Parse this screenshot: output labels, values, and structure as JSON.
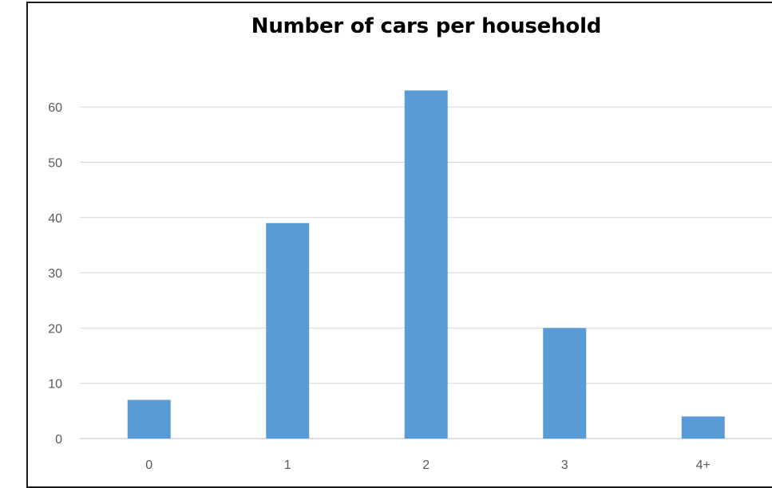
{
  "chart_data": {
    "type": "bar",
    "title": "Number of cars per household",
    "xlabel": "",
    "ylabel": "",
    "categories": [
      "0",
      "1",
      "2",
      "3",
      "4+"
    ],
    "values": [
      7,
      39,
      63,
      20,
      4
    ],
    "ylim": [
      0,
      60
    ],
    "yticks": [
      "0",
      "10",
      "20",
      "30",
      "40",
      "50",
      "60"
    ],
    "grid": true,
    "legend": "none",
    "colors": {
      "bar": "#5b9bd5",
      "grid": "#d9d9d9",
      "axis": "#bfbfbf",
      "tick_text": "#595959"
    }
  }
}
